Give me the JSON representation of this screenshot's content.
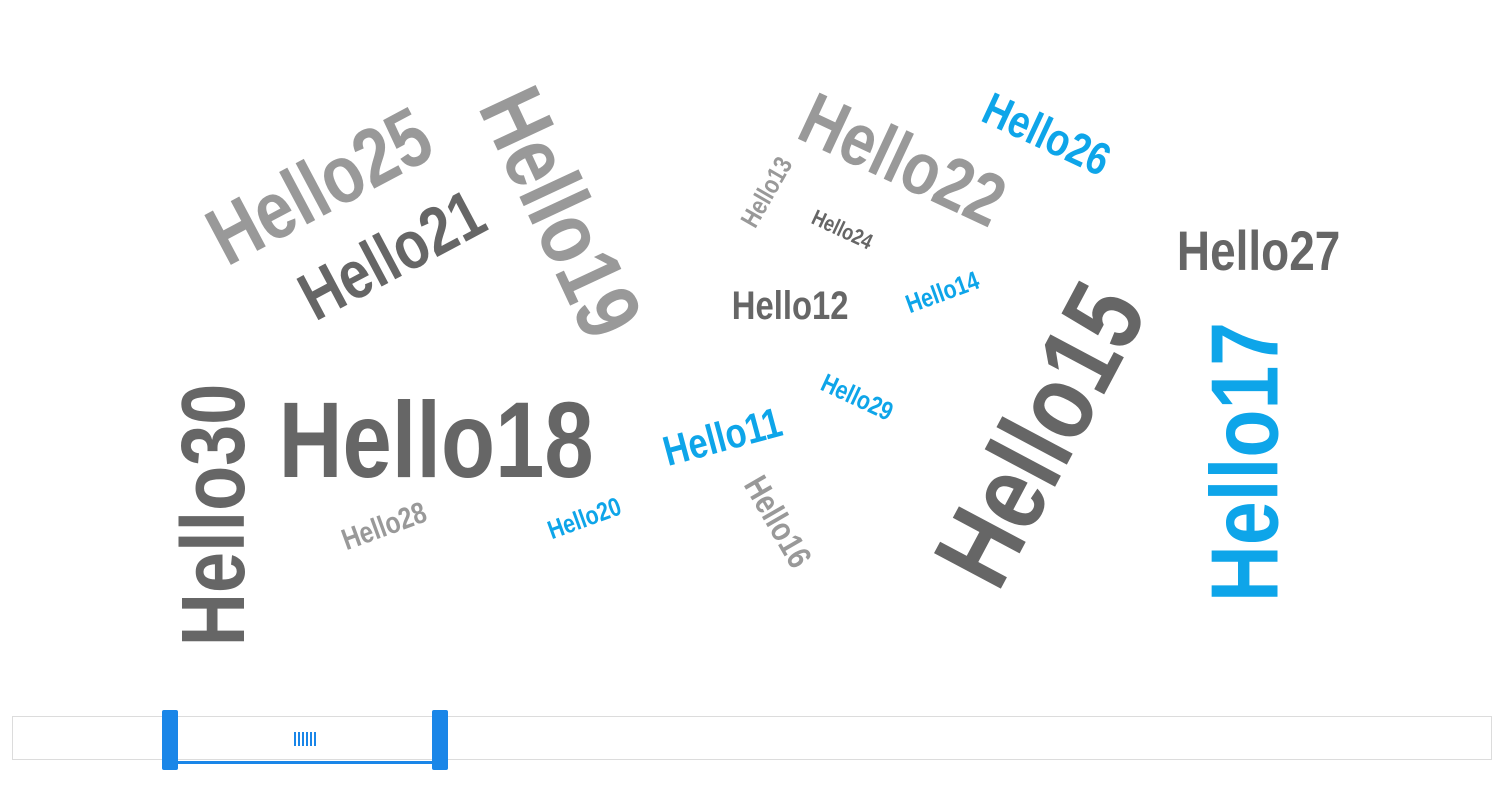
{
  "chart_data": {
    "type": "wordcloud",
    "colors": {
      "dark_gray": "#666666",
      "light_gray": "#999999",
      "blue": "#0ea5e9"
    },
    "words": [
      {
        "text": "Hello11",
        "color": "#0ea5e9",
        "size": 42,
        "rotation": -15
      },
      {
        "text": "Hello12",
        "color": "#666666",
        "size": 40,
        "rotation": 0
      },
      {
        "text": "Hello13",
        "color": "#999999",
        "size": 26,
        "rotation": -60
      },
      {
        "text": "Hello14",
        "color": "#0ea5e9",
        "size": 26,
        "rotation": -20
      },
      {
        "text": "Hello15",
        "color": "#666666",
        "size": 110,
        "rotation": -62
      },
      {
        "text": "Hello16",
        "color": "#999999",
        "size": 34,
        "rotation": 60
      },
      {
        "text": "Hello17",
        "color": "#0ea5e9",
        "size": 96,
        "rotation": -90
      },
      {
        "text": "Hello18",
        "color": "#666666",
        "size": 108,
        "rotation": 0
      },
      {
        "text": "Hello19",
        "color": "#999999",
        "size": 90,
        "rotation": 65
      },
      {
        "text": "Hello20",
        "color": "#0ea5e9",
        "size": 26,
        "rotation": -20
      },
      {
        "text": "Hello21",
        "color": "#666666",
        "size": 68,
        "rotation": -28
      },
      {
        "text": "Hello22",
        "color": "#999999",
        "size": 74,
        "rotation": 25
      },
      {
        "text": "Hello24",
        "color": "#666666",
        "size": 22,
        "rotation": 25
      },
      {
        "text": "Hello25",
        "color": "#999999",
        "size": 82,
        "rotation": -28
      },
      {
        "text": "Hello26",
        "color": "#0ea5e9",
        "size": 46,
        "rotation": 25
      },
      {
        "text": "Hello27",
        "color": "#666666",
        "size": 56,
        "rotation": 0
      },
      {
        "text": "Hello28",
        "color": "#999999",
        "size": 30,
        "rotation": -20
      },
      {
        "text": "Hello29",
        "color": "#0ea5e9",
        "size": 26,
        "rotation": 25
      },
      {
        "text": "Hello30",
        "color": "#666666",
        "size": 90,
        "rotation": -90
      }
    ]
  },
  "datazoom": {
    "start": 0.1,
    "end": 0.29,
    "accent": "#1a86e8"
  }
}
